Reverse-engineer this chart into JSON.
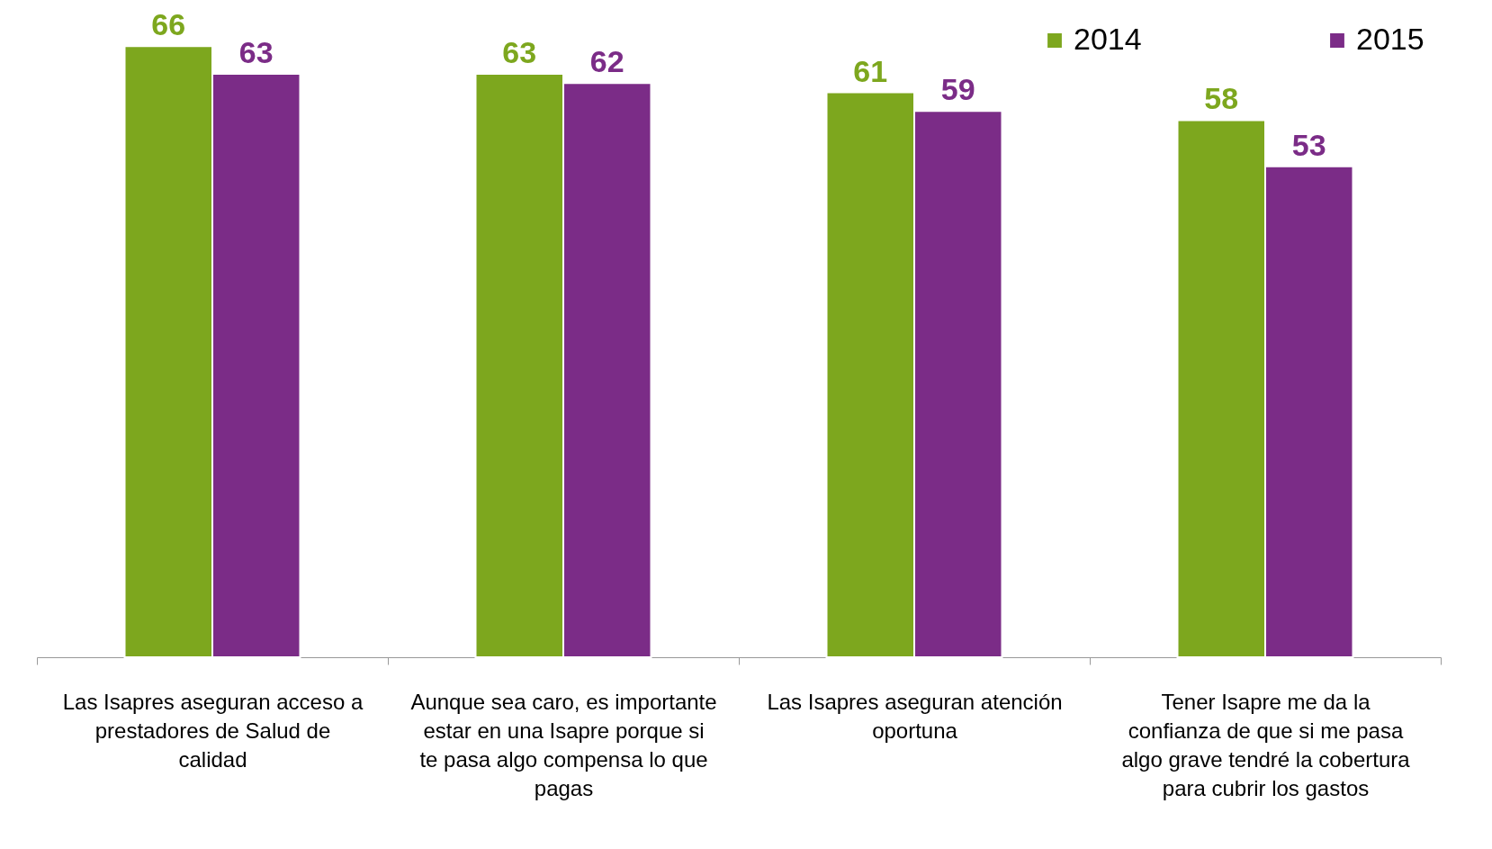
{
  "chart_data": {
    "type": "bar",
    "categories": [
      "Las Isapres aseguran acceso a prestadores de Salud de calidad",
      "Aunque sea caro, es importante estar en una Isapre porque si te pasa algo compensa lo que pagas",
      "Las Isapres aseguran atención oportuna",
      "Tener Isapre me da la confianza de que si me pasa algo grave tendré la cobertura para cubrir los gastos"
    ],
    "series": [
      {
        "name": "2014",
        "color": "#7da71e",
        "values": [
          66,
          63,
          61,
          58
        ]
      },
      {
        "name": "2015",
        "color": "#7b2c87",
        "values": [
          63,
          62,
          59,
          53
        ]
      }
    ],
    "data_labels": true,
    "legend": "top right",
    "grid": false
  }
}
